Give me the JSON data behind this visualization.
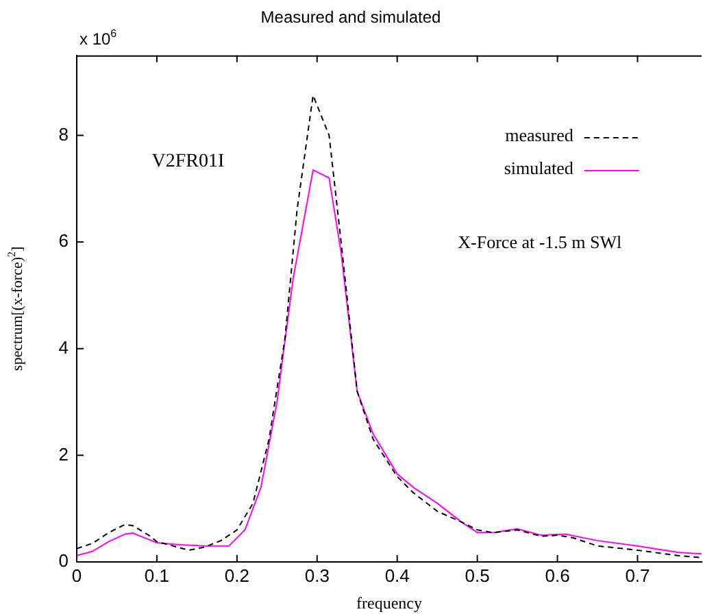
{
  "chart_data": {
    "type": "line",
    "title": "Measured and simulated",
    "xlabel": "frequency",
    "ylabel": "spectrum[(x-force)$^{2}$]",
    "annotations": [
      "x 10$^{6}$",
      "V2FR01I",
      "X-Force at -1.5 m SWl"
    ],
    "xlim": [
      0,
      0.78
    ],
    "xticks": [
      0,
      0.1,
      0.2,
      0.3,
      0.4,
      0.5,
      0.6,
      0.7
    ],
    "ylim": [
      0,
      9.5
    ],
    "yticks": [
      0,
      2,
      4,
      6,
      8
    ],
    "grid": false,
    "legend": "top right",
    "marker": "none",
    "series": [
      {
        "name": "measured",
        "color": "#000000",
        "line_style": "dashed",
        "x": [
          0,
          0.02,
          0.04,
          0.06,
          0.07,
          0.09,
          0.1,
          0.12,
          0.14,
          0.16,
          0.18,
          0.2,
          0.22,
          0.24,
          0.26,
          0.275,
          0.295,
          0.315,
          0.33,
          0.35,
          0.37,
          0.4,
          0.42,
          0.45,
          0.48,
          0.5,
          0.52,
          0.55,
          0.58,
          0.6,
          0.62,
          0.65,
          0.7,
          0.75,
          0.78
        ],
        "values": [
          0.25,
          0.35,
          0.55,
          0.7,
          0.68,
          0.5,
          0.38,
          0.3,
          0.22,
          0.28,
          0.4,
          0.6,
          1.1,
          2.3,
          4.2,
          6.6,
          8.75,
          8.0,
          6.0,
          3.2,
          2.3,
          1.6,
          1.3,
          0.95,
          0.75,
          0.6,
          0.55,
          0.6,
          0.48,
          0.5,
          0.45,
          0.3,
          0.22,
          0.12,
          0.08
        ]
      },
      {
        "name": "simulated",
        "color": "#ff00ff",
        "line_style": "solid",
        "x": [
          0,
          0.02,
          0.04,
          0.06,
          0.07,
          0.09,
          0.1,
          0.13,
          0.16,
          0.19,
          0.21,
          0.23,
          0.25,
          0.27,
          0.295,
          0.315,
          0.33,
          0.35,
          0.37,
          0.4,
          0.42,
          0.45,
          0.48,
          0.5,
          0.52,
          0.55,
          0.58,
          0.61,
          0.65,
          0.7,
          0.75,
          0.78
        ],
        "values": [
          0.12,
          0.2,
          0.38,
          0.52,
          0.54,
          0.42,
          0.36,
          0.32,
          0.3,
          0.3,
          0.6,
          1.4,
          3.0,
          5.3,
          7.35,
          7.2,
          5.8,
          3.2,
          2.4,
          1.65,
          1.4,
          1.1,
          0.75,
          0.55,
          0.55,
          0.62,
          0.5,
          0.52,
          0.4,
          0.3,
          0.18,
          0.15
        ]
      }
    ]
  }
}
